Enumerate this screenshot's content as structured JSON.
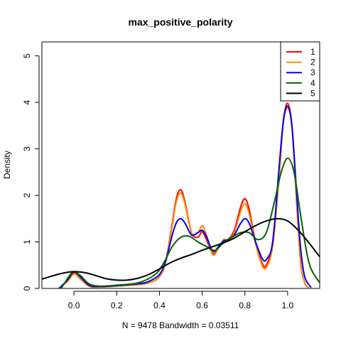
{
  "chart_data": {
    "type": "line",
    "title": "max_positive_polarity",
    "xlabel": "N = 9478   Bandwidth = 0.03511",
    "ylabel": "Density",
    "xlim": [
      -0.15,
      1.15
    ],
    "ylim": [
      0,
      5.3
    ],
    "x_ticks": [
      "0.0",
      "0.2",
      "0.4",
      "0.6",
      "0.8",
      "1.0"
    ],
    "y_ticks": [
      "0",
      "1",
      "2",
      "3",
      "4",
      "5"
    ],
    "grid": false,
    "legend_position": "top-right",
    "series": [
      {
        "name": "1",
        "color": "#ff0000",
        "x": [
          -0.07,
          -0.03,
          0.0,
          0.03,
          0.07,
          0.12,
          0.2,
          0.3,
          0.35,
          0.4,
          0.43,
          0.46,
          0.48,
          0.5,
          0.52,
          0.55,
          0.58,
          0.6,
          0.62,
          0.65,
          0.68,
          0.7,
          0.72,
          0.75,
          0.78,
          0.8,
          0.82,
          0.85,
          0.88,
          0.9,
          0.93,
          0.96,
          0.98,
          1.0,
          1.02,
          1.04,
          1.06,
          1.08,
          1.1
        ],
        "y": [
          0.0,
          0.16,
          0.33,
          0.22,
          0.05,
          0.03,
          0.05,
          0.08,
          0.12,
          0.25,
          0.6,
          1.4,
          1.95,
          2.12,
          1.85,
          1.2,
          1.1,
          1.22,
          1.05,
          0.75,
          0.9,
          1.05,
          1.05,
          1.25,
          1.75,
          1.93,
          1.7,
          1.0,
          0.55,
          0.5,
          1.0,
          2.5,
          3.6,
          3.98,
          3.5,
          2.0,
          0.6,
          0.12,
          0.01
        ]
      },
      {
        "name": "2",
        "color": "#ff8c00",
        "x": [
          -0.07,
          -0.03,
          0.0,
          0.03,
          0.07,
          0.12,
          0.2,
          0.3,
          0.35,
          0.4,
          0.43,
          0.46,
          0.48,
          0.5,
          0.52,
          0.55,
          0.58,
          0.6,
          0.62,
          0.65,
          0.68,
          0.7,
          0.72,
          0.75,
          0.78,
          0.8,
          0.82,
          0.85,
          0.88,
          0.9,
          0.93,
          0.96,
          0.98,
          1.0,
          1.02,
          1.04,
          1.06,
          1.08,
          1.1
        ],
        "y": [
          0.0,
          0.15,
          0.31,
          0.2,
          0.05,
          0.03,
          0.05,
          0.08,
          0.12,
          0.25,
          0.58,
          1.35,
          1.88,
          2.05,
          1.8,
          1.2,
          1.2,
          1.35,
          1.15,
          0.72,
          0.9,
          1.05,
          1.05,
          1.2,
          1.65,
          1.82,
          1.6,
          0.95,
          0.5,
          0.45,
          0.9,
          2.35,
          3.55,
          3.88,
          3.45,
          2.0,
          0.6,
          0.12,
          0.01
        ]
      },
      {
        "name": "3",
        "color": "#0000ff",
        "x": [
          -0.07,
          -0.03,
          0.0,
          0.03,
          0.07,
          0.12,
          0.2,
          0.3,
          0.35,
          0.4,
          0.43,
          0.46,
          0.48,
          0.5,
          0.52,
          0.55,
          0.58,
          0.6,
          0.62,
          0.65,
          0.68,
          0.7,
          0.72,
          0.75,
          0.78,
          0.8,
          0.82,
          0.85,
          0.88,
          0.9,
          0.93,
          0.96,
          0.98,
          1.0,
          1.02,
          1.04,
          1.06,
          1.08,
          1.11
        ],
        "y": [
          0.0,
          0.18,
          0.36,
          0.25,
          0.07,
          0.04,
          0.06,
          0.1,
          0.15,
          0.3,
          0.6,
          1.15,
          1.42,
          1.5,
          1.4,
          1.15,
          1.2,
          1.25,
          1.12,
          0.8,
          0.92,
          1.02,
          1.05,
          1.15,
          1.4,
          1.5,
          1.4,
          1.0,
          0.65,
          0.62,
          1.0,
          2.6,
          3.6,
          3.92,
          3.5,
          2.2,
          0.9,
          0.25,
          0.02
        ]
      },
      {
        "name": "4",
        "color": "#006400",
        "x": [
          -0.06,
          -0.02,
          0.0,
          0.03,
          0.07,
          0.12,
          0.2,
          0.3,
          0.38,
          0.42,
          0.46,
          0.5,
          0.54,
          0.58,
          0.62,
          0.66,
          0.7,
          0.74,
          0.78,
          0.82,
          0.86,
          0.9,
          0.94,
          0.97,
          1.0,
          1.03,
          1.06,
          1.1,
          1.15
        ],
        "y": [
          0.0,
          0.28,
          0.36,
          0.28,
          0.1,
          0.05,
          0.07,
          0.12,
          0.3,
          0.55,
          0.9,
          1.1,
          1.12,
          1.0,
          0.9,
          0.82,
          0.98,
          1.1,
          1.2,
          1.2,
          1.05,
          1.2,
          1.9,
          2.5,
          2.8,
          2.5,
          1.6,
          0.55,
          0.12
        ]
      },
      {
        "name": "5",
        "color": "#000000",
        "x": [
          -0.15,
          -0.1,
          -0.05,
          0.0,
          0.05,
          0.1,
          0.15,
          0.2,
          0.25,
          0.3,
          0.35,
          0.4,
          0.45,
          0.5,
          0.55,
          0.6,
          0.65,
          0.7,
          0.75,
          0.8,
          0.85,
          0.9,
          0.95,
          1.0,
          1.05,
          1.1,
          1.15
        ],
        "y": [
          0.2,
          0.27,
          0.33,
          0.36,
          0.34,
          0.28,
          0.21,
          0.18,
          0.18,
          0.22,
          0.3,
          0.42,
          0.55,
          0.65,
          0.73,
          0.82,
          0.9,
          0.98,
          1.08,
          1.22,
          1.35,
          1.45,
          1.5,
          1.45,
          1.25,
          0.98,
          0.68
        ]
      }
    ]
  }
}
